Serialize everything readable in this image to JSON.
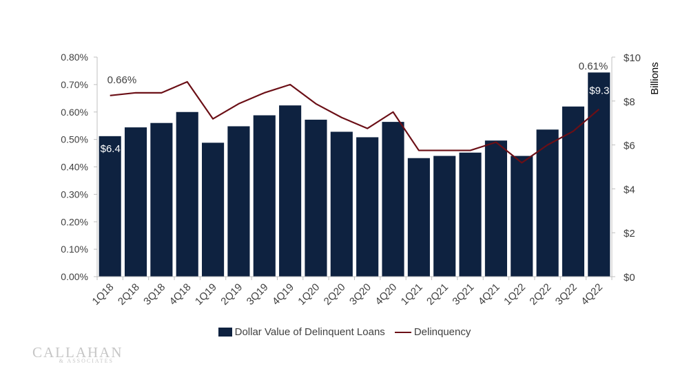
{
  "chart_data": {
    "type": "bar+line",
    "categories": [
      "1Q18",
      "2Q18",
      "3Q18",
      "4Q18",
      "1Q19",
      "2Q19",
      "3Q19",
      "4Q19",
      "1Q20",
      "2Q20",
      "3Q20",
      "4Q20",
      "1Q21",
      "2Q21",
      "3Q21",
      "4Q21",
      "1Q22",
      "2Q22",
      "3Q22",
      "4Q22"
    ],
    "bar_series": {
      "name": "Dollar Value of Delinquent Loans",
      "axis": "right",
      "unit": "Billions",
      "color": "#0e2240",
      "values": [
        6.4,
        6.8,
        7.0,
        7.5,
        6.1,
        6.85,
        7.35,
        7.8,
        7.15,
        6.6,
        6.35,
        7.05,
        5.4,
        5.5,
        5.65,
        6.2,
        5.5,
        6.7,
        7.75,
        9.3
      ]
    },
    "line_series": {
      "name": "Delinquency",
      "axis": "left",
      "color": "#6b0f16",
      "values": [
        0.66,
        0.67,
        0.67,
        0.71,
        0.575,
        0.63,
        0.67,
        0.7,
        0.63,
        0.58,
        0.54,
        0.6,
        0.46,
        0.46,
        0.46,
        0.49,
        0.415,
        0.48,
        0.53,
        0.61
      ]
    },
    "left_axis": {
      "min": 0.0,
      "max": 0.8,
      "step": 0.1,
      "ticks": [
        "0.00%",
        "0.10%",
        "0.20%",
        "0.30%",
        "0.40%",
        "0.50%",
        "0.60%",
        "0.70%",
        "0.80%"
      ]
    },
    "right_axis": {
      "min": 0,
      "max": 10,
      "step": 2,
      "ticks": [
        "$0",
        "$2",
        "$4",
        "$6",
        "$8",
        "$10"
      ],
      "title": "Billions"
    },
    "data_labels": [
      {
        "text": "0.66%",
        "series": "line",
        "index": 0
      },
      {
        "text": "$6.4",
        "series": "bar",
        "index": 0
      },
      {
        "text": "0.61%",
        "series": "line",
        "index": 19
      },
      {
        "text": "$9.3",
        "series": "bar",
        "index": 19
      }
    ],
    "legend": {
      "placement": "bottom",
      "items": [
        "Dollar Value of Delinquent Loans",
        "Delinquency"
      ]
    }
  },
  "branding": {
    "logo_text": "CALLAHAN",
    "logo_subtext": "& ASSOCIATES"
  }
}
